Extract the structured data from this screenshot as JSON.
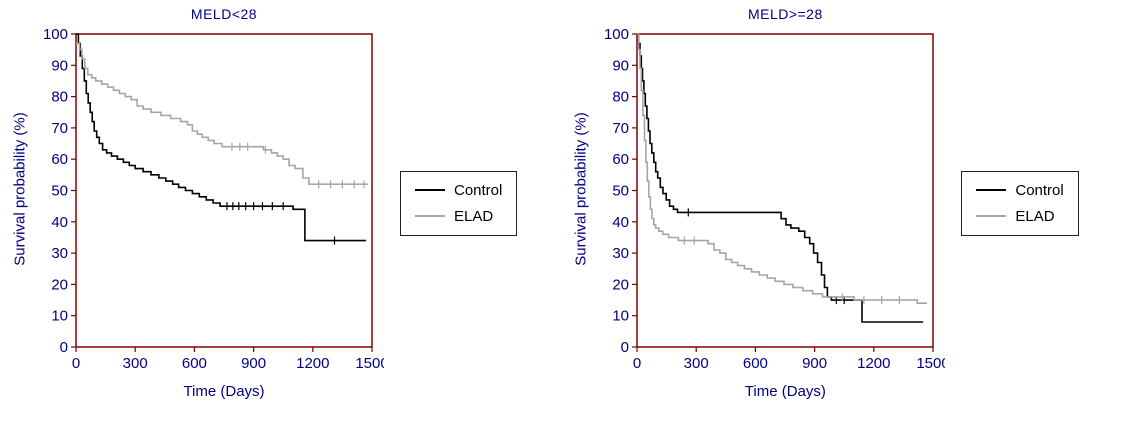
{
  "colors": {
    "background": "#ffffff",
    "frame": "#800000",
    "text": "#000080",
    "control": "#000000",
    "elad": "#a6a6a6",
    "legend_border": "#222222"
  },
  "chart_data": [
    {
      "type": "line",
      "subtype": "kaplan-meier-step",
      "title": "MELD<28",
      "xlabel": "Time (Days)",
      "ylabel": "Survival probability (%)",
      "xlim": [
        0,
        1500
      ],
      "ylim": [
        0,
        100
      ],
      "xticks": [
        0,
        300,
        600,
        900,
        1200,
        1500
      ],
      "yticks": [
        0,
        10,
        20,
        30,
        40,
        50,
        60,
        70,
        80,
        90,
        100
      ],
      "grid": false,
      "legend_position": "right",
      "series": [
        {
          "name": "Control",
          "color": "#000000",
          "points": [
            [
              0,
              100
            ],
            [
              12,
              97
            ],
            [
              22,
              93
            ],
            [
              32,
              89
            ],
            [
              42,
              85
            ],
            [
              52,
              81
            ],
            [
              62,
              78
            ],
            [
              72,
              75
            ],
            [
              82,
              72
            ],
            [
              92,
              69
            ],
            [
              105,
              67
            ],
            [
              118,
              65
            ],
            [
              135,
              63
            ],
            [
              155,
              62
            ],
            [
              180,
              61
            ],
            [
              210,
              60
            ],
            [
              240,
              59
            ],
            [
              270,
              58
            ],
            [
              300,
              57
            ],
            [
              340,
              56
            ],
            [
              380,
              55
            ],
            [
              420,
              54
            ],
            [
              455,
              53
            ],
            [
              490,
              52
            ],
            [
              520,
              51
            ],
            [
              555,
              50
            ],
            [
              590,
              49
            ],
            [
              625,
              48
            ],
            [
              660,
              47
            ],
            [
              695,
              46
            ],
            [
              730,
              45
            ],
            [
              1100,
              44
            ],
            [
              1160,
              34
            ],
            [
              1470,
              34
            ]
          ],
          "censors": [
            [
              765,
              45
            ],
            [
              795,
              45
            ],
            [
              825,
              45
            ],
            [
              860,
              45
            ],
            [
              900,
              45
            ],
            [
              945,
              45
            ],
            [
              995,
              45
            ],
            [
              1050,
              45
            ],
            [
              1310,
              34
            ]
          ]
        },
        {
          "name": "ELAD",
          "color": "#a6a6a6",
          "points": [
            [
              0,
              97
            ],
            [
              18,
              95
            ],
            [
              30,
              92
            ],
            [
              45,
              89
            ],
            [
              60,
              87
            ],
            [
              80,
              86
            ],
            [
              100,
              85
            ],
            [
              130,
              84
            ],
            [
              160,
              83
            ],
            [
              190,
              82
            ],
            [
              220,
              81
            ],
            [
              250,
              80
            ],
            [
              280,
              79
            ],
            [
              310,
              77
            ],
            [
              340,
              76
            ],
            [
              380,
              75
            ],
            [
              430,
              74
            ],
            [
              480,
              73
            ],
            [
              530,
              72
            ],
            [
              565,
              71
            ],
            [
              590,
              69
            ],
            [
              615,
              68
            ],
            [
              640,
              67
            ],
            [
              670,
              66
            ],
            [
              700,
              65
            ],
            [
              740,
              64
            ],
            [
              900,
              64
            ],
            [
              950,
              63
            ],
            [
              990,
              62
            ],
            [
              1020,
              61
            ],
            [
              1050,
              60
            ],
            [
              1080,
              58
            ],
            [
              1110,
              57
            ],
            [
              1150,
              54
            ],
            [
              1180,
              52
            ],
            [
              1480,
              52
            ]
          ],
          "censors": [
            [
              790,
              64
            ],
            [
              830,
              64
            ],
            [
              870,
              64
            ],
            [
              960,
              63
            ],
            [
              1230,
              52
            ],
            [
              1290,
              52
            ],
            [
              1350,
              52
            ],
            [
              1410,
              52
            ],
            [
              1460,
              52
            ]
          ]
        }
      ]
    },
    {
      "type": "line",
      "subtype": "kaplan-meier-step",
      "title": "MELD>=28",
      "xlabel": "Time (Days)",
      "ylabel": "Survival probability (%)",
      "xlim": [
        0,
        1500
      ],
      "ylim": [
        0,
        100
      ],
      "xticks": [
        0,
        300,
        600,
        900,
        1200,
        1500
      ],
      "yticks": [
        0,
        10,
        20,
        30,
        40,
        50,
        60,
        70,
        80,
        90,
        100
      ],
      "grid": false,
      "legend_position": "right",
      "series": [
        {
          "name": "Control",
          "color": "#000000",
          "points": [
            [
              0,
              100
            ],
            [
              8,
              97
            ],
            [
              15,
              93
            ],
            [
              22,
              89
            ],
            [
              28,
              85
            ],
            [
              35,
              81
            ],
            [
              42,
              77
            ],
            [
              50,
              73
            ],
            [
              58,
              69
            ],
            [
              66,
              65
            ],
            [
              75,
              62
            ],
            [
              85,
              59
            ],
            [
              95,
              56
            ],
            [
              105,
              54
            ],
            [
              118,
              51
            ],
            [
              132,
              49
            ],
            [
              148,
              47
            ],
            [
              165,
              45
            ],
            [
              185,
              44
            ],
            [
              205,
              43
            ],
            [
              700,
              43
            ],
            [
              730,
              41
            ],
            [
              755,
              39
            ],
            [
              780,
              38
            ],
            [
              820,
              37
            ],
            [
              850,
              35
            ],
            [
              875,
              33
            ],
            [
              895,
              30
            ],
            [
              915,
              27
            ],
            [
              935,
              23
            ],
            [
              950,
              19
            ],
            [
              965,
              16
            ],
            [
              985,
              15
            ],
            [
              1110,
              15
            ],
            [
              1140,
              8
            ],
            [
              1450,
              8
            ]
          ],
          "censors": [
            [
              260,
              43
            ],
            [
              1010,
              15
            ],
            [
              1050,
              15
            ]
          ]
        },
        {
          "name": "ELAD",
          "color": "#a6a6a6",
          "points": [
            [
              0,
              100
            ],
            [
              8,
              95
            ],
            [
              15,
              89
            ],
            [
              22,
              82
            ],
            [
              30,
              74
            ],
            [
              38,
              66
            ],
            [
              45,
              59
            ],
            [
              52,
              53
            ],
            [
              60,
              48
            ],
            [
              68,
              44
            ],
            [
              76,
              41
            ],
            [
              85,
              39
            ],
            [
              95,
              38
            ],
            [
              110,
              37
            ],
            [
              130,
              36
            ],
            [
              160,
              35
            ],
            [
              210,
              34
            ],
            [
              330,
              34
            ],
            [
              360,
              33
            ],
            [
              390,
              31
            ],
            [
              420,
              30
            ],
            [
              450,
              28
            ],
            [
              480,
              27
            ],
            [
              510,
              26
            ],
            [
              545,
              25
            ],
            [
              580,
              24
            ],
            [
              620,
              23
            ],
            [
              660,
              22
            ],
            [
              700,
              21
            ],
            [
              745,
              20
            ],
            [
              790,
              19
            ],
            [
              840,
              18
            ],
            [
              890,
              17
            ],
            [
              940,
              16
            ],
            [
              1000,
              16
            ],
            [
              1100,
              15
            ],
            [
              1380,
              15
            ],
            [
              1420,
              14
            ],
            [
              1470,
              14
            ]
          ],
          "censors": [
            [
              240,
              34
            ],
            [
              290,
              34
            ],
            [
              1040,
              16
            ],
            [
              1150,
              15
            ],
            [
              1240,
              15
            ],
            [
              1330,
              15
            ]
          ]
        }
      ]
    }
  ]
}
